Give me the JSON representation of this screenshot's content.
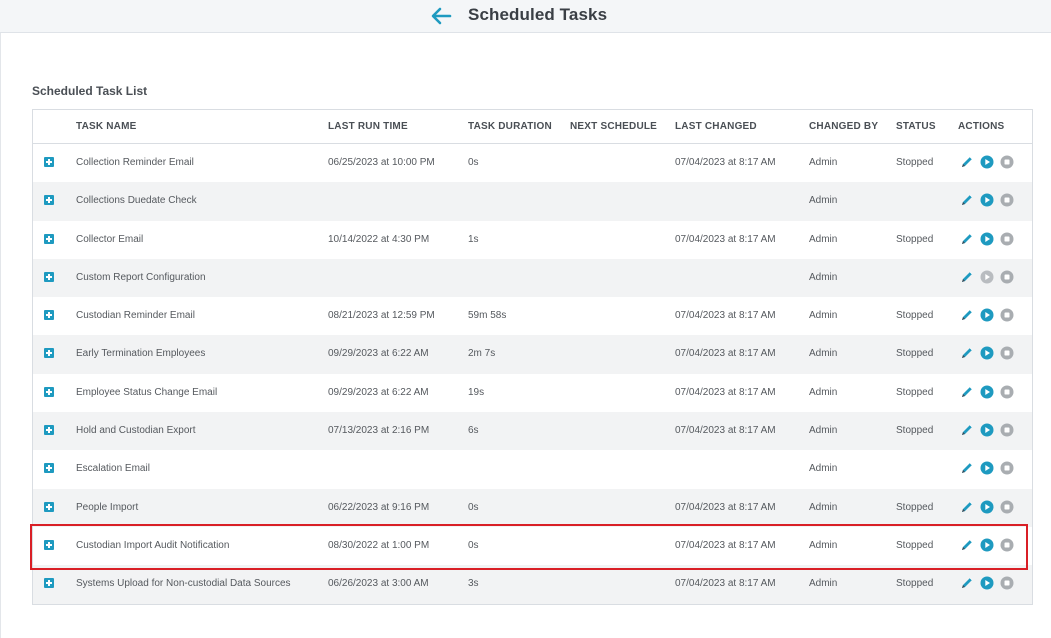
{
  "header": {
    "title": "Scheduled Tasks"
  },
  "section": {
    "title": "Scheduled Task List"
  },
  "columns": [
    "TASK NAME",
    "LAST RUN TIME",
    "TASK DURATION",
    "NEXT SCHEDULE",
    "LAST CHANGED",
    "CHANGED BY",
    "STATUS",
    "ACTIONS"
  ],
  "rows": [
    {
      "name": "Collection Reminder Email",
      "last_run": "06/25/2023 at 10:00 PM",
      "duration": "0s",
      "next": "",
      "changed": "07/04/2023 at 8:17 AM",
      "by": "Admin",
      "status": "Stopped",
      "play_enabled": true
    },
    {
      "name": "Collections Duedate Check",
      "last_run": "",
      "duration": "",
      "next": "",
      "changed": "",
      "by": "Admin",
      "status": "",
      "play_enabled": true
    },
    {
      "name": "Collector Email",
      "last_run": "10/14/2022 at 4:30 PM",
      "duration": "1s",
      "next": "",
      "changed": "07/04/2023 at 8:17 AM",
      "by": "Admin",
      "status": "Stopped",
      "play_enabled": true
    },
    {
      "name": "Custom Report Configuration",
      "last_run": "",
      "duration": "",
      "next": "",
      "changed": "",
      "by": "Admin",
      "status": "",
      "play_enabled": false
    },
    {
      "name": "Custodian Reminder Email",
      "last_run": "08/21/2023 at 12:59 PM",
      "duration": "59m 58s",
      "next": "",
      "changed": "07/04/2023 at 8:17 AM",
      "by": "Admin",
      "status": "Stopped",
      "play_enabled": true
    },
    {
      "name": "Early Termination Employees",
      "last_run": "09/29/2023 at 6:22 AM",
      "duration": "2m 7s",
      "next": "",
      "changed": "07/04/2023 at 8:17 AM",
      "by": "Admin",
      "status": "Stopped",
      "play_enabled": true
    },
    {
      "name": "Employee Status Change Email",
      "last_run": "09/29/2023 at 6:22 AM",
      "duration": "19s",
      "next": "",
      "changed": "07/04/2023 at 8:17 AM",
      "by": "Admin",
      "status": "Stopped",
      "play_enabled": true
    },
    {
      "name": "Hold and Custodian Export",
      "last_run": "07/13/2023 at 2:16 PM",
      "duration": "6s",
      "next": "",
      "changed": "07/04/2023 at 8:17 AM",
      "by": "Admin",
      "status": "Stopped",
      "play_enabled": true
    },
    {
      "name": "Escalation Email",
      "last_run": "",
      "duration": "",
      "next": "",
      "changed": "",
      "by": "Admin",
      "status": "",
      "play_enabled": true
    },
    {
      "name": "People Import",
      "last_run": "06/22/2023 at 9:16 PM",
      "duration": "0s",
      "next": "",
      "changed": "07/04/2023 at 8:17 AM",
      "by": "Admin",
      "status": "Stopped",
      "play_enabled": true
    },
    {
      "name": "Custodian Import Audit Notification",
      "last_run": "08/30/2022 at 1:00 PM",
      "duration": "0s",
      "next": "",
      "changed": "07/04/2023 at 8:17 AM",
      "by": "Admin",
      "status": "Stopped",
      "play_enabled": true
    },
    {
      "name": "Systems Upload for Non-custodial Data Sources",
      "last_run": "06/26/2023 at 3:00 AM",
      "duration": "3s",
      "next": "",
      "changed": "07/04/2023 at 8:17 AM",
      "by": "Admin",
      "status": "Stopped",
      "play_enabled": true
    }
  ],
  "colors": {
    "accent": "#1e9ac0",
    "stop_gray": "#a9adb1",
    "disabled_gray": "#b9bcc0",
    "highlight": "#d91f26",
    "row_alt": "#f2f3f4"
  },
  "icons": {
    "back": "arrow-left-icon",
    "expand": "plus-square-icon",
    "edit": "pencil-icon",
    "play": "play-circle-icon",
    "stop": "stop-circle-icon"
  }
}
